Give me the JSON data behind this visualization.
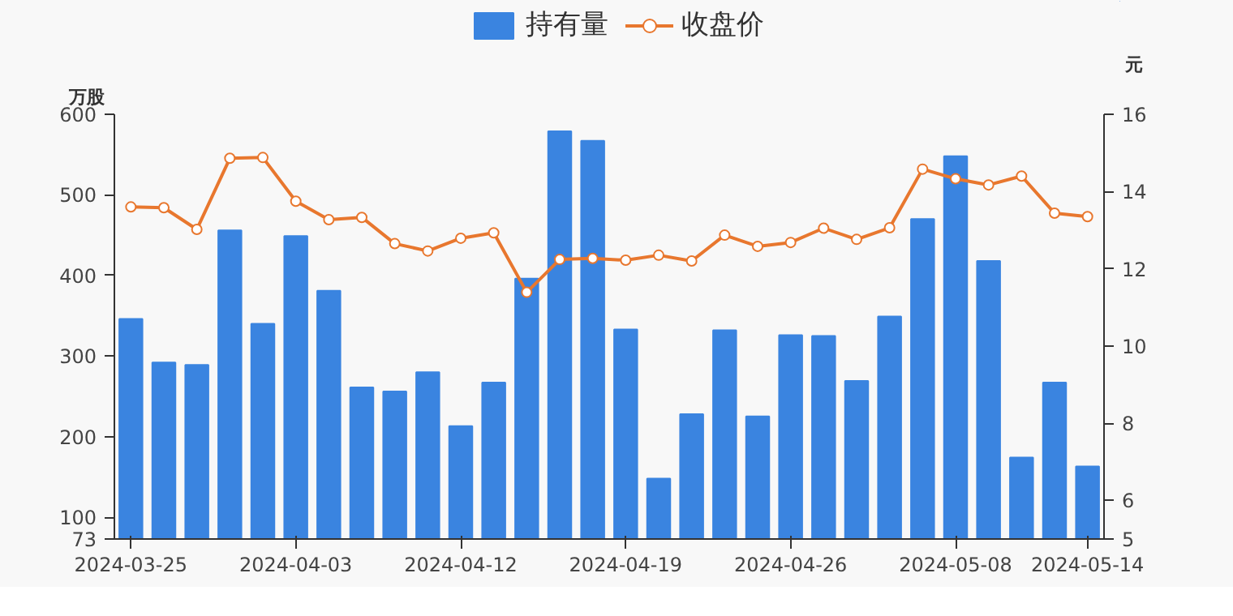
{
  "chart_data": {
    "type": "bar",
    "ylabel": "万股",
    "y2label": "元",
    "categories": [
      "2024-03-25",
      null,
      null,
      null,
      null,
      "2024-04-03",
      null,
      null,
      null,
      null,
      "2024-04-12",
      null,
      null,
      null,
      null,
      "2024-04-19",
      null,
      null,
      null,
      null,
      "2024-04-26",
      null,
      null,
      null,
      null,
      "2024-05-08",
      null,
      null,
      null,
      "2024-05-14"
    ],
    "series": [
      {
        "name": "持有量",
        "color": "#3a84e0",
        "values": [
          346,
          292,
          289,
          456,
          340,
          449,
          381,
          261,
          256,
          280,
          213,
          267,
          396,
          579,
          567,
          333,
          148,
          228,
          332,
          225,
          326,
          325,
          269,
          349,
          470,
          548,
          418,
          174,
          267,
          163
        ]
      },
      {
        "name": "收盘价",
        "type": "line",
        "axis": "y2",
        "color": "#e8772e",
        "marker": "circle",
        "values": [
          13.6,
          13.58,
          13.02,
          14.86,
          14.88,
          13.75,
          13.27,
          13.33,
          12.65,
          12.46,
          12.79,
          12.93,
          11.39,
          12.24,
          12.27,
          12.22,
          12.35,
          12.2,
          12.87,
          12.58,
          12.68,
          13.05,
          12.76,
          13.06,
          14.58,
          14.33,
          14.17,
          14.4,
          13.44,
          13.35
        ]
      }
    ],
    "ylim": [
      73,
      600
    ],
    "yticks": [
      73,
      100,
      200,
      300,
      400,
      500,
      600
    ],
    "y2lim": [
      5,
      16
    ],
    "y2ticks": [
      5,
      6,
      8,
      10,
      12,
      14,
      16
    ],
    "grid": false,
    "legend": "top"
  }
}
